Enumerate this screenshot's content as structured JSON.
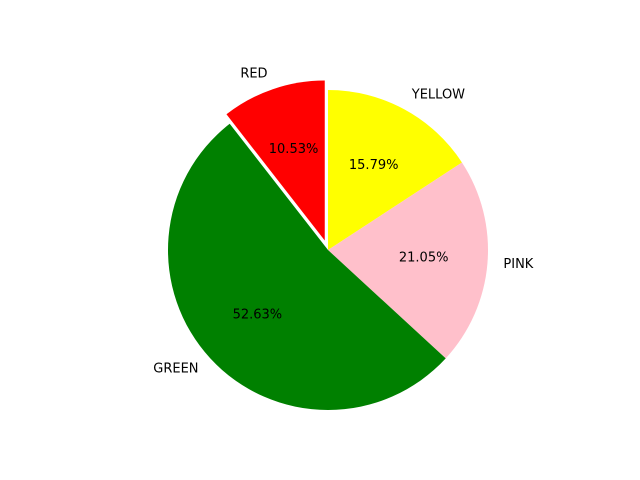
{
  "chart_data": {
    "type": "pie",
    "labels": [
      "YELLOW",
      "PINK",
      "GREEN",
      "RED"
    ],
    "values": [
      15.79,
      21.05,
      52.63,
      10.53
    ],
    "percent_labels": [
      "15.79%",
      "21.05%",
      "52.63%",
      "10.53%"
    ],
    "colors": [
      "#ffff00",
      "#ffc0cb",
      "#008000",
      "#ff0000"
    ],
    "exploded": [
      "RED"
    ],
    "start_angle_deg": 90,
    "direction": "clockwise"
  }
}
